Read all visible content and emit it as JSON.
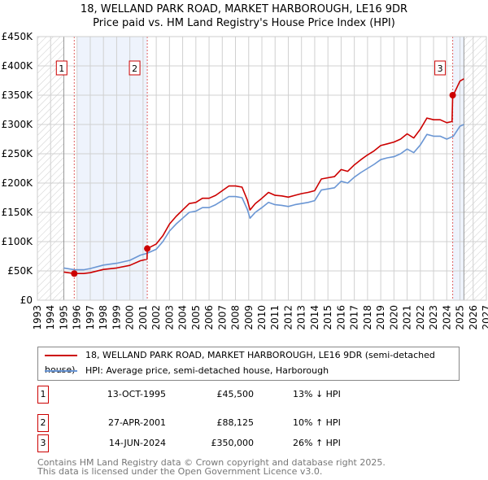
{
  "chart_data": {
    "type": "line",
    "title": "18, WELLAND PARK ROAD, MARKET HARBOROUGH, LE16 9DR",
    "subtitle": "Price paid vs. HM Land Registry's House Price Index (HPI)",
    "xlim": [
      1993,
      2027
    ],
    "ylim": [
      0,
      450000
    ],
    "x_ticks": [
      "1993",
      "1994",
      "1995",
      "1996",
      "1997",
      "1998",
      "1999",
      "2000",
      "2001",
      "2002",
      "2003",
      "2004",
      "2005",
      "2006",
      "2007",
      "2008",
      "2009",
      "2010",
      "2011",
      "2012",
      "2013",
      "2014",
      "2015",
      "2016",
      "2017",
      "2018",
      "2019",
      "2020",
      "2021",
      "2022",
      "2023",
      "2024",
      "2025",
      "2026",
      "2027"
    ],
    "y_ticks": [
      {
        "v": 0,
        "label": "£0"
      },
      {
        "v": 50000,
        "label": "£50K"
      },
      {
        "v": 100000,
        "label": "£100K"
      },
      {
        "v": 150000,
        "label": "£150K"
      },
      {
        "v": 200000,
        "label": "£200K"
      },
      {
        "v": 250000,
        "label": "£250K"
      },
      {
        "v": 300000,
        "label": "£300K"
      },
      {
        "v": 350000,
        "label": "£350K"
      },
      {
        "v": 400000,
        "label": "£400K"
      },
      {
        "v": 450000,
        "label": "£450K"
      }
    ],
    "grid": true,
    "data_range": [
      1995,
      2025.3
    ],
    "shaded_ranges": [
      [
        1996,
        2001.32
      ],
      [
        2024.45,
        2025.3
      ]
    ],
    "series": [
      {
        "name": "18, WELLAND PARK ROAD, MARKET HARBOROUGH, LE16 9DR (semi-detached house)",
        "color": "#cc0000",
        "points": [
          [
            1995.0,
            48000
          ],
          [
            1995.79,
            45500
          ],
          [
            1996.5,
            45500
          ],
          [
            1997,
            47000
          ],
          [
            1998,
            52500
          ],
          [
            1999,
            55000
          ],
          [
            2000,
            59500
          ],
          [
            2000.8,
            67400
          ],
          [
            2001.3,
            70000
          ],
          [
            2001.32,
            88125
          ],
          [
            2002,
            96000
          ],
          [
            2002.5,
            110000
          ],
          [
            2003,
            130000
          ],
          [
            2003.5,
            143000
          ],
          [
            2004,
            154000
          ],
          [
            2004.5,
            165000
          ],
          [
            2005,
            167000
          ],
          [
            2005.5,
            174000
          ],
          [
            2006,
            174000
          ],
          [
            2006.5,
            179000
          ],
          [
            2007,
            187000
          ],
          [
            2007.5,
            195000
          ],
          [
            2008,
            195000
          ],
          [
            2008.5,
            193000
          ],
          [
            2008.9,
            171000
          ],
          [
            2009.1,
            154000
          ],
          [
            2009.5,
            165000
          ],
          [
            2010,
            174000
          ],
          [
            2010.5,
            184000
          ],
          [
            2011,
            179000
          ],
          [
            2011.5,
            178000
          ],
          [
            2012,
            176000
          ],
          [
            2012.5,
            179000
          ],
          [
            2013,
            182000
          ],
          [
            2013.5,
            184000
          ],
          [
            2014,
            187000
          ],
          [
            2014.5,
            207000
          ],
          [
            2015,
            209000
          ],
          [
            2015.5,
            211000
          ],
          [
            2016,
            223000
          ],
          [
            2016.5,
            220000
          ],
          [
            2017,
            231000
          ],
          [
            2017.5,
            240000
          ],
          [
            2018,
            248000
          ],
          [
            2018.5,
            255000
          ],
          [
            2019,
            264000
          ],
          [
            2019.5,
            267000
          ],
          [
            2020,
            270000
          ],
          [
            2020.5,
            275000
          ],
          [
            2021,
            284000
          ],
          [
            2021.5,
            277000
          ],
          [
            2022,
            292000
          ],
          [
            2022.5,
            311000
          ],
          [
            2023,
            308000
          ],
          [
            2023.5,
            308000
          ],
          [
            2024,
            303000
          ],
          [
            2024.4,
            305000
          ],
          [
            2024.45,
            350000
          ],
          [
            2024.6,
            355000
          ],
          [
            2025,
            374000
          ],
          [
            2025.3,
            378000
          ]
        ]
      },
      {
        "name": "HPI: Average price, semi-detached house, Harborough",
        "color": "#6a96d4",
        "points": [
          [
            1995.0,
            55000
          ],
          [
            1995.8,
            52000
          ],
          [
            1996.5,
            52000
          ],
          [
            1997,
            54000
          ],
          [
            1998,
            60000
          ],
          [
            1999,
            63000
          ],
          [
            2000,
            68000
          ],
          [
            2000.8,
            77000
          ],
          [
            2001.3,
            80000
          ],
          [
            2002,
            87000
          ],
          [
            2002.5,
            100000
          ],
          [
            2003,
            118000
          ],
          [
            2003.5,
            130000
          ],
          [
            2004,
            140000
          ],
          [
            2004.5,
            150000
          ],
          [
            2005,
            152000
          ],
          [
            2005.5,
            158000
          ],
          [
            2006,
            158000
          ],
          [
            2006.5,
            163000
          ],
          [
            2007,
            170000
          ],
          [
            2007.5,
            177000
          ],
          [
            2008,
            177000
          ],
          [
            2008.5,
            175000
          ],
          [
            2008.9,
            155000
          ],
          [
            2009.1,
            140000
          ],
          [
            2009.5,
            150000
          ],
          [
            2010,
            158000
          ],
          [
            2010.5,
            167000
          ],
          [
            2011,
            163000
          ],
          [
            2011.5,
            162000
          ],
          [
            2012,
            160000
          ],
          [
            2012.5,
            163000
          ],
          [
            2013,
            165000
          ],
          [
            2013.5,
            167000
          ],
          [
            2014,
            170000
          ],
          [
            2014.5,
            188000
          ],
          [
            2015,
            190000
          ],
          [
            2015.5,
            192000
          ],
          [
            2016,
            203000
          ],
          [
            2016.5,
            200000
          ],
          [
            2017,
            210000
          ],
          [
            2017.5,
            218000
          ],
          [
            2018,
            225000
          ],
          [
            2018.5,
            232000
          ],
          [
            2019,
            240000
          ],
          [
            2019.5,
            243000
          ],
          [
            2020,
            245000
          ],
          [
            2020.5,
            250000
          ],
          [
            2021,
            258000
          ],
          [
            2021.5,
            252000
          ],
          [
            2022,
            265000
          ],
          [
            2022.5,
            283000
          ],
          [
            2023,
            280000
          ],
          [
            2023.5,
            280000
          ],
          [
            2024,
            275000
          ],
          [
            2024.5,
            280000
          ],
          [
            2025,
            297000
          ],
          [
            2025.3,
            300000
          ]
        ]
      }
    ],
    "sales": [
      {
        "num": "1",
        "x": 1995.79,
        "price": 45500,
        "date": "13-OCT-1995",
        "price_label": "£45,500",
        "hpi": "13% ↓ HPI"
      },
      {
        "num": "2",
        "x": 2001.32,
        "price": 88125,
        "date": "27-APR-2001",
        "price_label": "£88,125",
        "hpi": "10% ↑ HPI"
      },
      {
        "num": "3",
        "x": 2024.45,
        "price": 350000,
        "date": "14-JUN-2024",
        "price_label": "£350,000",
        "hpi": "26% ↑ HPI"
      }
    ],
    "legend_position": "below"
  },
  "footer": {
    "line1": "Contains HM Land Registry data © Crown copyright and database right 2025.",
    "line2": "This data is licensed under the Open Government Licence v3.0."
  }
}
